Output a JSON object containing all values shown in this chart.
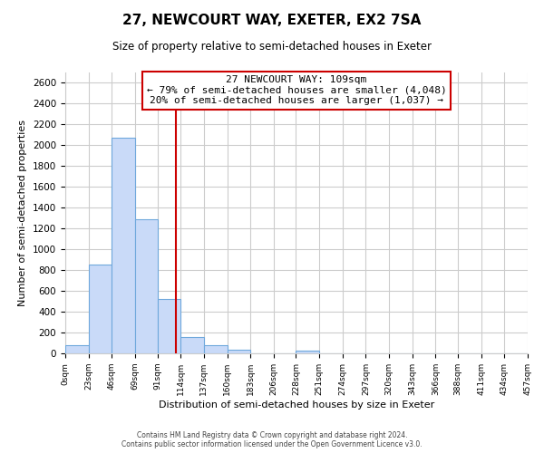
{
  "title": "27, NEWCOURT WAY, EXETER, EX2 7SA",
  "subtitle": "Size of property relative to semi-detached houses in Exeter",
  "xlabel": "Distribution of semi-detached houses by size in Exeter",
  "ylabel": "Number of semi-detached properties",
  "footer_line1": "Contains HM Land Registry data © Crown copyright and database right 2024.",
  "footer_line2": "Contains public sector information licensed under the Open Government Licence v3.0.",
  "bin_edges": [
    0,
    23,
    46,
    69,
    91,
    114,
    137,
    160,
    183,
    206,
    228,
    251,
    274,
    297,
    320,
    343,
    366,
    388,
    411,
    434,
    457
  ],
  "bar_heights": [
    75,
    855,
    2075,
    1290,
    520,
    160,
    75,
    35,
    0,
    0,
    25,
    0,
    0,
    0,
    0,
    0,
    0,
    0,
    0,
    0
  ],
  "bar_color": "#c9daf8",
  "bar_edge_color": "#6fa8dc",
  "vline_x": 109,
  "vline_color": "#cc0000",
  "ylim": [
    0,
    2700
  ],
  "yticks": [
    0,
    200,
    400,
    600,
    800,
    1000,
    1200,
    1400,
    1600,
    1800,
    2000,
    2200,
    2400,
    2600
  ],
  "annotation_title": "27 NEWCOURT WAY: 109sqm",
  "annotation_line1": "← 79% of semi-detached houses are smaller (4,048)",
  "annotation_line2": "20% of semi-detached houses are larger (1,037) →",
  "grid_color": "#cccccc",
  "background_color": "#ffffff",
  "title_fontsize": 11,
  "subtitle_fontsize": 8.5,
  "annotation_fontsize": 8,
  "axis_label_fontsize": 8,
  "ytick_fontsize": 7.5,
  "xtick_fontsize": 6.5
}
